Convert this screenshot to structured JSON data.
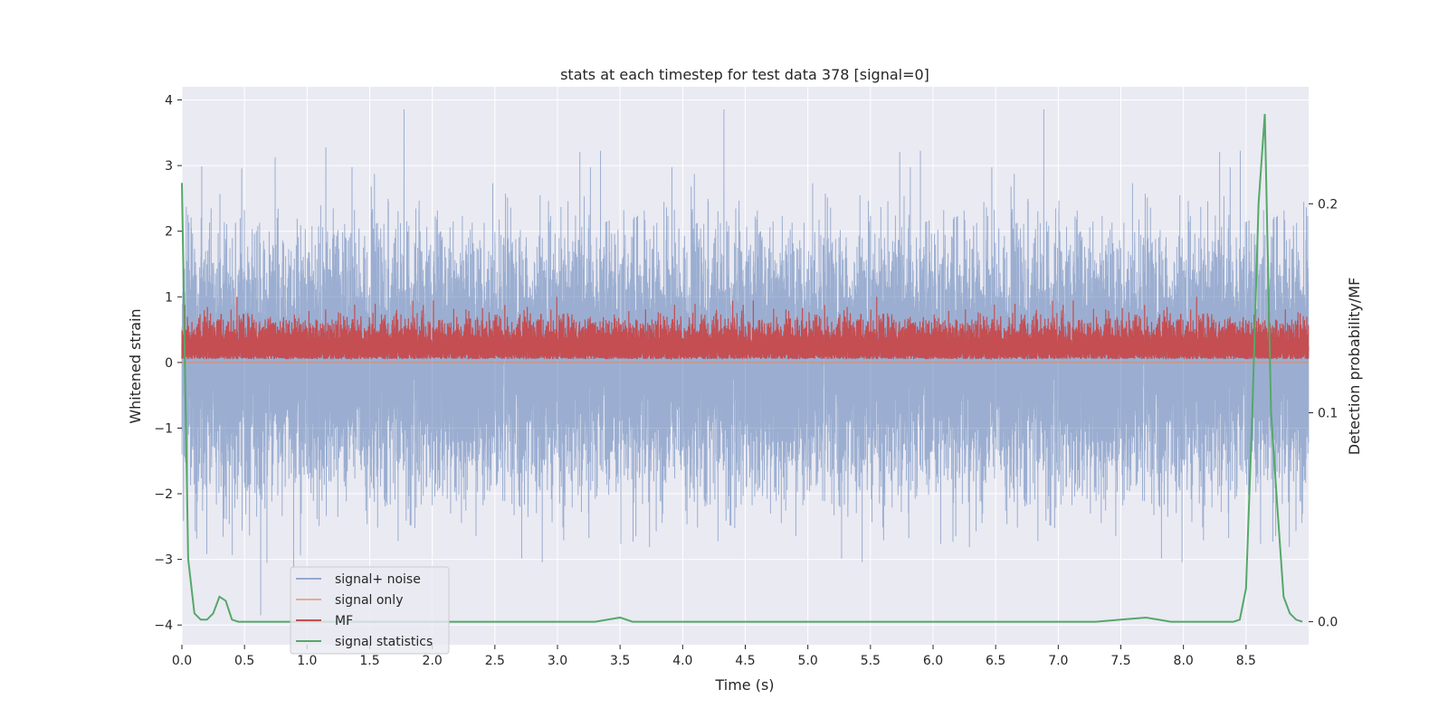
{
  "chart_data": {
    "type": "line",
    "title": "stats at each timestep for test data 378 [signal=0]",
    "xlabel": "Time (s)",
    "ylabel": "Whitened strain",
    "y2label": "Detection probability/MF",
    "xlim": [
      0.0,
      9.0
    ],
    "ylim": [
      -4.3,
      4.2
    ],
    "y2lim": [
      -0.011,
      0.256
    ],
    "xticks": [
      "0.0",
      "0.5",
      "1.0",
      "1.5",
      "2.0",
      "2.5",
      "3.0",
      "3.5",
      "4.0",
      "4.5",
      "5.0",
      "5.5",
      "6.0",
      "6.5",
      "7.0",
      "7.5",
      "8.0",
      "8.5"
    ],
    "yticks": [
      "4",
      "3",
      "2",
      "1",
      "0",
      "−1",
      "−2",
      "−3",
      "−4"
    ],
    "y2ticks": [
      "0.0",
      "0.1",
      "0.2"
    ],
    "grid": true,
    "legend_position": "lower-left",
    "colors": {
      "background": "#eaeaf2",
      "grid": "#ffffff",
      "signal_noise": "#4c72b0",
      "signal_only": "#dd8452",
      "mf": "#c44e52",
      "signal_statistics": "#55a868"
    },
    "series": [
      {
        "name": "signal+ noise",
        "axis": "left",
        "description_values": "dense noise sampled at 2048 Hz, approx gaussian sigma ~0.9, spikes to 3.86 and -3.85",
        "sample_rate": 2048,
        "duration": 9.0
      },
      {
        "name": "signal only",
        "axis": "left",
        "x": [
          0.0,
          9.0
        ],
        "y": [
          0.0,
          0.0
        ]
      },
      {
        "name": "MF",
        "axis": "left",
        "description_values": "dense positive noise between 0.0 and 1.0, mean ~0.3",
        "sample_rate": 2048,
        "duration": 9.0
      },
      {
        "name": "signal statistics",
        "axis": "right",
        "x": [
          0.0,
          0.05,
          0.1,
          0.15,
          0.2,
          0.25,
          0.3,
          0.35,
          0.4,
          0.45,
          0.5,
          0.55,
          0.6,
          3.3,
          3.4,
          3.5,
          3.6,
          3.7,
          7.3,
          7.5,
          7.7,
          7.8,
          7.9,
          8.0,
          8.4,
          8.45,
          8.5,
          8.55,
          8.6,
          8.65,
          8.7,
          8.75,
          8.8,
          8.85,
          8.9,
          8.95
        ],
        "y": [
          0.21,
          0.03,
          0.004,
          0.001,
          0.001,
          0.004,
          0.012,
          0.01,
          0.001,
          0.0,
          0.0,
          0.0,
          0.0,
          0.0,
          0.001,
          0.002,
          0.0,
          0.0,
          0.0,
          0.001,
          0.002,
          0.001,
          0.0,
          0.0,
          0.0,
          0.001,
          0.016,
          0.1,
          0.2,
          0.243,
          0.1,
          0.055,
          0.012,
          0.004,
          0.001,
          0.0
        ]
      }
    ]
  }
}
